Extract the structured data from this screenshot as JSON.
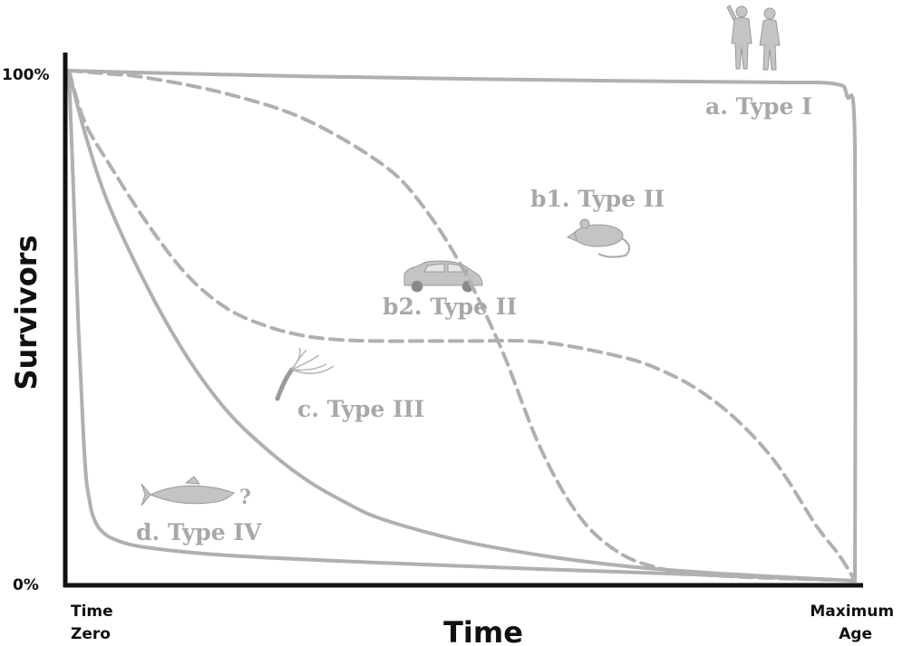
{
  "chart_data": {
    "type": "line",
    "title": "",
    "xlabel": "Time",
    "ylabel": "Survivors",
    "x_tick_labels": [
      {
        "line1": "Time",
        "line2": "Zero"
      },
      {
        "line1": "Maximum",
        "line2": "Age"
      }
    ],
    "y_tick_labels": [
      "100%",
      "0%"
    ],
    "xlim": [
      0,
      1
    ],
    "ylim": [
      0,
      100
    ],
    "grid": false,
    "series": [
      {
        "name": "a. Type I",
        "dashed": false,
        "icon": "humans-icon",
        "x": [
          0,
          0.1,
          0.3,
          0.5,
          0.7,
          0.9,
          0.975,
          0.99,
          1.0,
          1.0
        ],
        "y": [
          100,
          99.6,
          98.9,
          98.4,
          98.0,
          97.7,
          97.4,
          95,
          85,
          0
        ]
      },
      {
        "name": "b1. Type II",
        "dashed": true,
        "icon": "mouse-icon",
        "x": [
          0,
          0.05,
          0.1,
          0.2,
          0.3,
          0.4,
          0.45,
          0.5,
          0.55,
          0.6,
          0.65,
          0.7,
          0.75,
          0.8,
          0.85,
          0.9,
          1.0
        ],
        "y": [
          100,
          99.4,
          98.6,
          95.5,
          90.5,
          81.5,
          73.5,
          61.5,
          45.5,
          26,
          12.5,
          5.5,
          2.5,
          1.3,
          0.8,
          0.5,
          0
        ]
      },
      {
        "name": "b2. Type II",
        "dashed": true,
        "icon": "car-icon",
        "x": [
          0,
          0.02,
          0.05,
          0.1,
          0.15,
          0.2,
          0.25,
          0.3,
          0.35,
          0.4,
          0.5,
          0.6,
          0.7,
          0.75,
          0.8,
          0.85,
          0.9,
          0.95,
          0.98,
          1.0
        ],
        "y": [
          100,
          90,
          82,
          70,
          60,
          53.5,
          50,
          48,
          47.2,
          47,
          47,
          46.8,
          44,
          41.5,
          37.5,
          31.5,
          23,
          11,
          5,
          0
        ]
      },
      {
        "name": "c. Type III",
        "dashed": false,
        "icon": "hydra-icon",
        "x": [
          0,
          0.02,
          0.05,
          0.1,
          0.15,
          0.2,
          0.25,
          0.3,
          0.35,
          0.4,
          0.5,
          0.6,
          0.7,
          0.8,
          0.9,
          1.0
        ],
        "y": [
          100,
          88,
          74,
          57.5,
          44,
          33.5,
          26,
          20,
          15.5,
          12,
          7.8,
          5,
          3,
          1.7,
          0.8,
          0
        ]
      },
      {
        "name": "d. Type IV",
        "dashed": false,
        "icon": "fish-icon",
        "annotation": "?",
        "x": [
          0,
          0.005,
          0.012,
          0.018,
          0.022,
          0.026,
          0.03,
          0.04,
          0.06,
          0.1,
          0.2,
          0.4,
          0.6,
          0.8,
          1.0
        ],
        "y": [
          100,
          80,
          50,
          30,
          20,
          16,
          13,
          10,
          8,
          6.5,
          5,
          3.5,
          2.3,
          1.2,
          0
        ]
      }
    ]
  }
}
